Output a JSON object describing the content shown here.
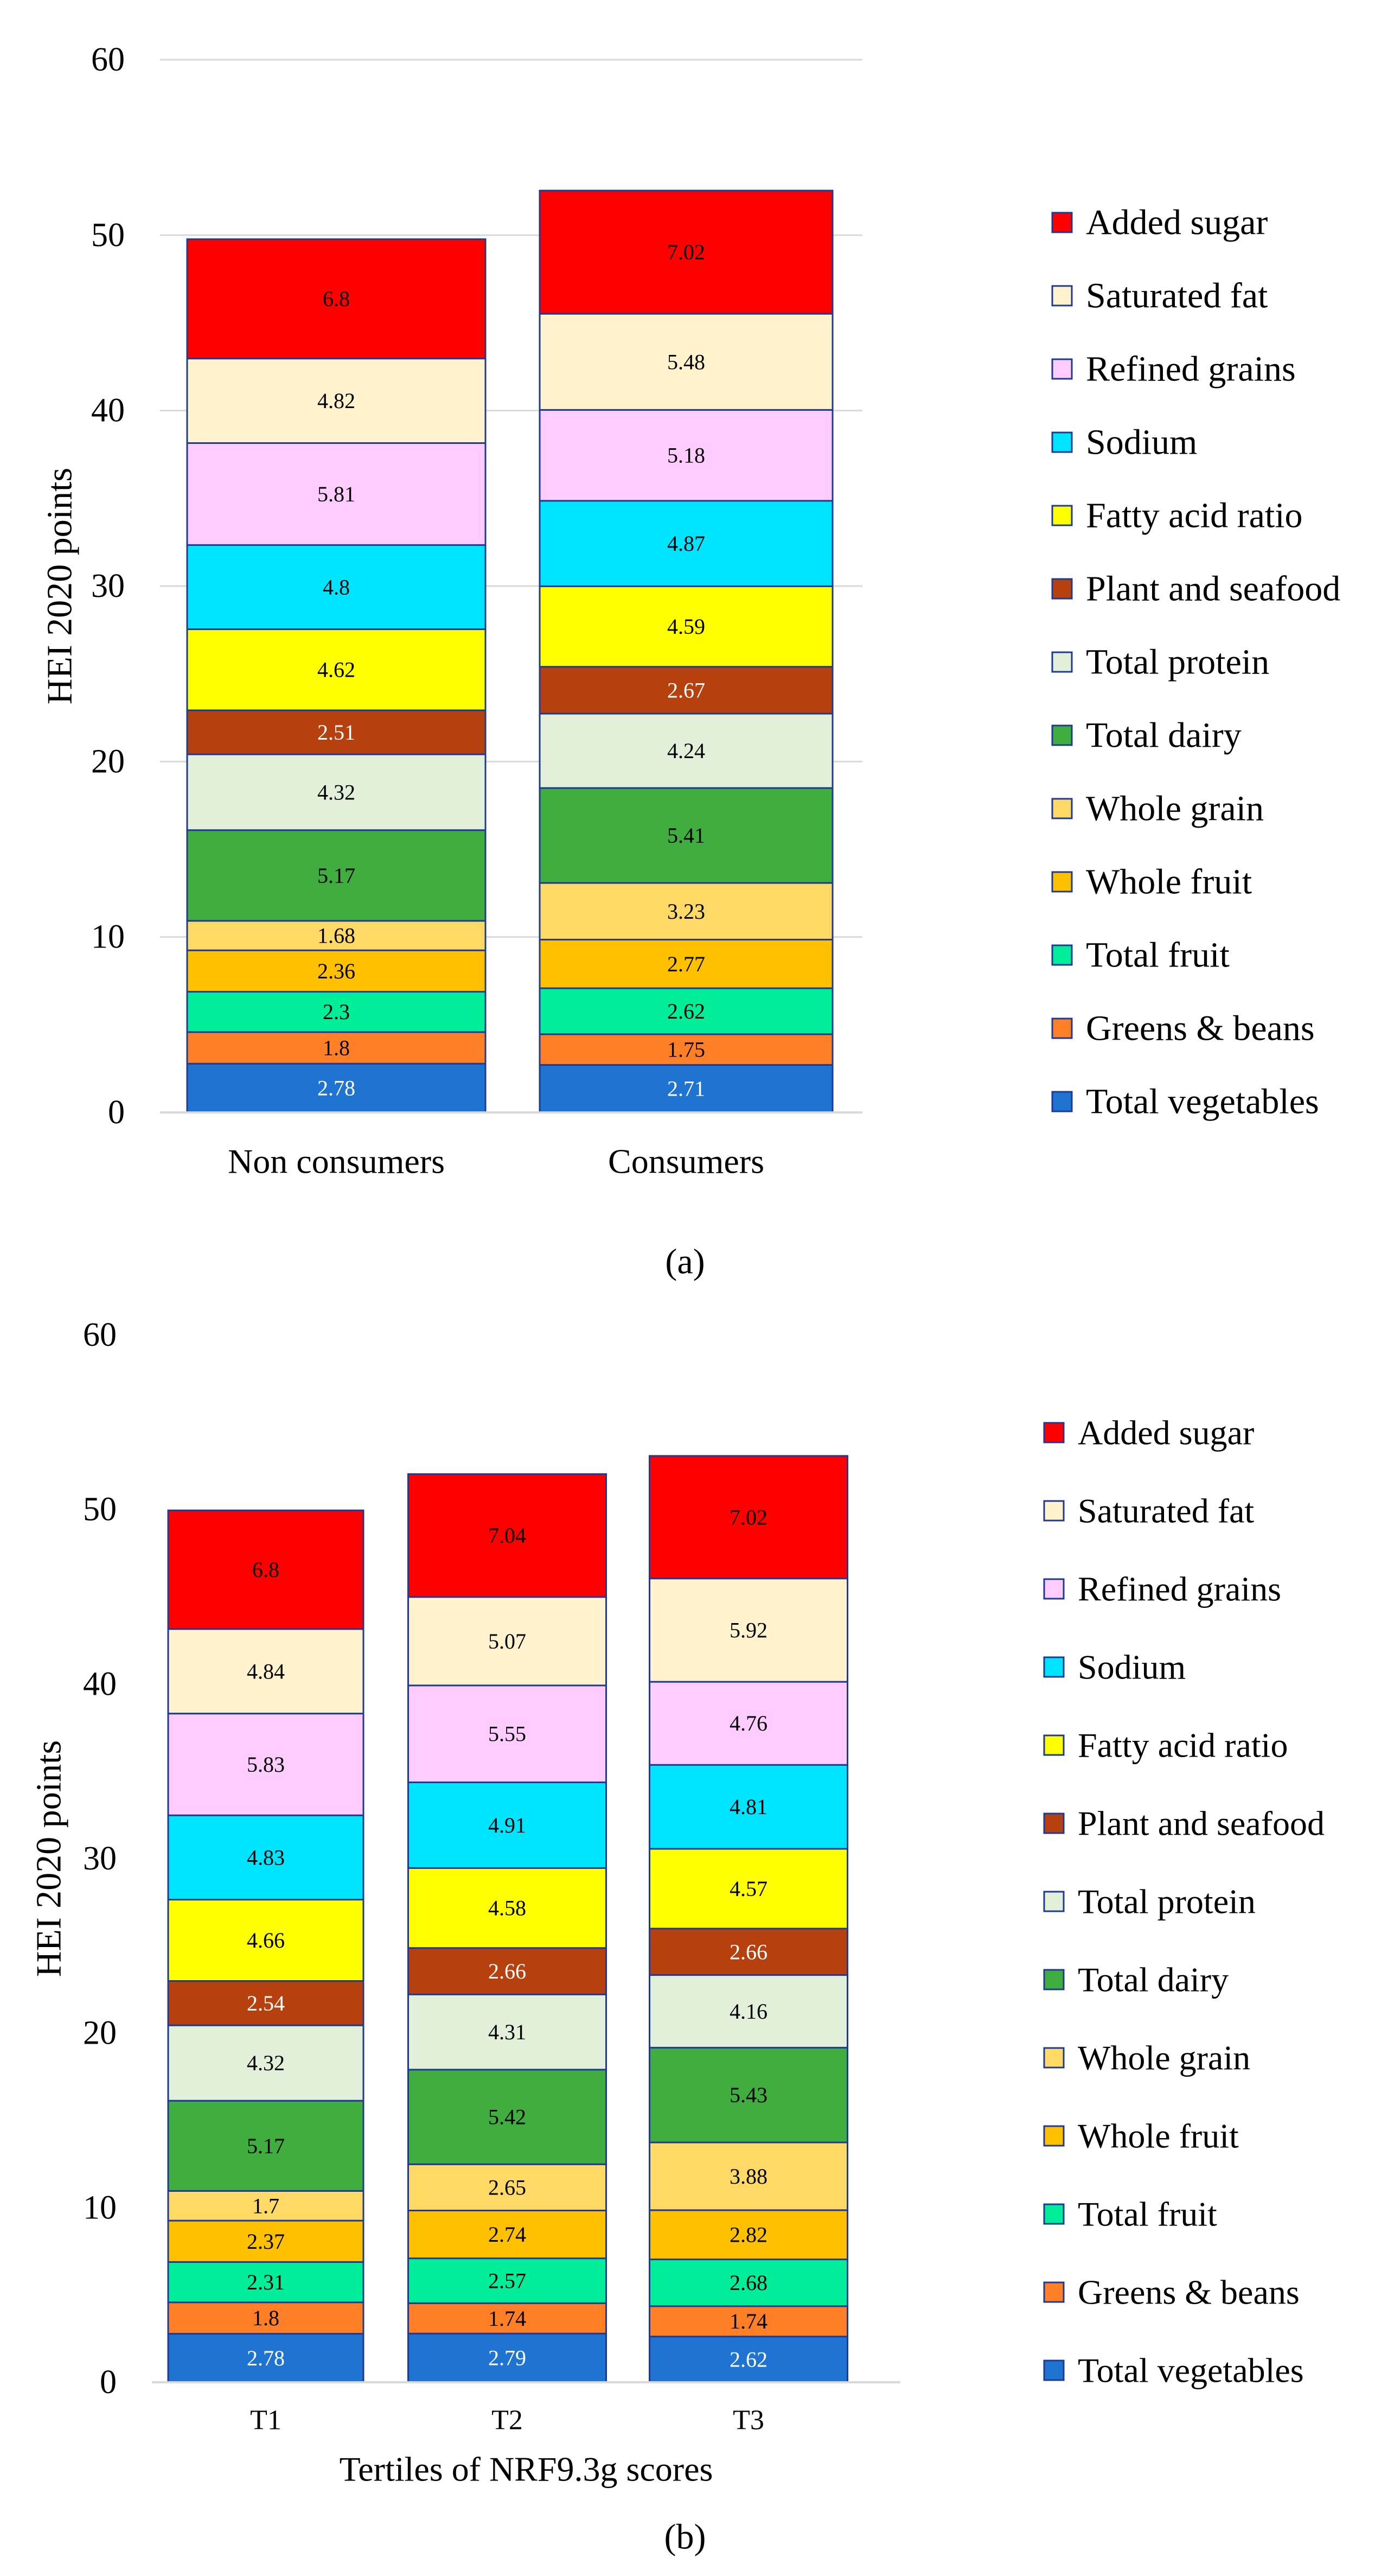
{
  "figure": {
    "panel_a_label": "(a)",
    "panel_b_label": "(b)"
  },
  "colors": {
    "Added sugar": "#ff0000",
    "Saturated fat": "#fff2cc",
    "Refined grains": "#ffccff",
    "Sodium": "#00e5ff",
    "Fatty acid ratio": "#ffff00",
    "Plant and seafood": "#b7410e",
    "Total protein": "#e2f0d9",
    "Total dairy": "#3fae3f",
    "Whole grain": "#ffd966",
    "Whole fruit": "#ffc000",
    "Total fruit": "#00ee99",
    "Greens & beans": "#ff7f27",
    "Total vegetables": "#1f73d1"
  },
  "chart_data": [
    {
      "type": "bar",
      "stacked": true,
      "panel": "a",
      "title": "",
      "xlabel": "",
      "ylabel": "HEI 2020 points",
      "ylim": [
        0,
        60
      ],
      "yticks": [
        "0",
        "10",
        "20",
        "30",
        "40",
        "50",
        "60"
      ],
      "grid": true,
      "legend_position": "right",
      "categories": [
        "Non consumers",
        "Consumers"
      ],
      "series": [
        {
          "name": "Total vegetables",
          "values": [
            2.78,
            2.71
          ],
          "labels": [
            "2.78",
            "2.71"
          ]
        },
        {
          "name": "Greens & beans",
          "values": [
            1.8,
            1.75
          ],
          "labels": [
            "1.8",
            "1.75"
          ]
        },
        {
          "name": "Total fruit",
          "values": [
            2.3,
            2.62
          ],
          "labels": [
            "2.3",
            "2.62"
          ]
        },
        {
          "name": "Whole fruit",
          "values": [
            2.36,
            2.77
          ],
          "labels": [
            "2.36",
            "2.77"
          ]
        },
        {
          "name": "Whole grain",
          "values": [
            1.68,
            3.23
          ],
          "labels": [
            "1.68",
            "3.23"
          ]
        },
        {
          "name": "Total dairy",
          "values": [
            5.17,
            5.41
          ],
          "labels": [
            "5.17",
            "5.41"
          ]
        },
        {
          "name": "Total protein",
          "values": [
            4.32,
            4.24
          ],
          "labels": [
            "4.32",
            "4.24"
          ]
        },
        {
          "name": "Plant and seafood",
          "values": [
            2.51,
            2.67
          ],
          "labels": [
            "2.51",
            "2.67"
          ]
        },
        {
          "name": "Fatty acid ratio",
          "values": [
            4.62,
            4.59
          ],
          "labels": [
            "4.62",
            "4.59"
          ]
        },
        {
          "name": "Sodium",
          "values": [
            4.8,
            4.87
          ],
          "labels": [
            "4.8",
            "4.87"
          ]
        },
        {
          "name": "Refined grains",
          "values": [
            5.81,
            5.18
          ],
          "labels": [
            "5.81",
            "5.18"
          ]
        },
        {
          "name": "Saturated fat",
          "values": [
            4.82,
            5.48
          ],
          "labels": [
            "4.82",
            "5.48"
          ]
        },
        {
          "name": "Added sugar",
          "values": [
            6.8,
            7.02
          ],
          "labels": [
            "6.8",
            "7.02"
          ]
        }
      ]
    },
    {
      "type": "bar",
      "stacked": true,
      "panel": "b",
      "title": "",
      "xlabel": "Tertiles of NRF9.3g scores",
      "ylabel": "HEI 2020 points",
      "ylim": [
        0,
        60
      ],
      "yticks": [
        "0",
        "10",
        "20",
        "30",
        "40",
        "50",
        "60"
      ],
      "grid": false,
      "legend_position": "right",
      "categories": [
        "T1",
        "T2",
        "T3"
      ],
      "series": [
        {
          "name": "Total vegetables",
          "values": [
            2.78,
            2.79,
            2.62
          ],
          "labels": [
            "2.78",
            "2.79",
            "2.62"
          ]
        },
        {
          "name": "Greens & beans",
          "values": [
            1.8,
            1.74,
            1.74
          ],
          "labels": [
            "1.8",
            "1.74",
            "1.74"
          ]
        },
        {
          "name": "Total fruit",
          "values": [
            2.31,
            2.57,
            2.68
          ],
          "labels": [
            "2.31",
            "2.57",
            "2.68"
          ]
        },
        {
          "name": "Whole fruit",
          "values": [
            2.37,
            2.74,
            2.82
          ],
          "labels": [
            "2.37",
            "2.74",
            "2.82"
          ]
        },
        {
          "name": "Whole grain",
          "values": [
            1.7,
            2.65,
            3.88
          ],
          "labels": [
            "1.7",
            "2.65",
            "3.88"
          ]
        },
        {
          "name": "Total dairy",
          "values": [
            5.17,
            5.42,
            5.43
          ],
          "labels": [
            "5.17",
            "5.42",
            "5.43"
          ]
        },
        {
          "name": "Total protein",
          "values": [
            4.32,
            4.31,
            4.16
          ],
          "labels": [
            "4.32",
            "4.31",
            "4.16"
          ]
        },
        {
          "name": "Plant and seafood",
          "values": [
            2.54,
            2.66,
            2.66
          ],
          "labels": [
            "2.54",
            "2.66",
            "2.66"
          ]
        },
        {
          "name": "Fatty acid ratio",
          "values": [
            4.66,
            4.58,
            4.57
          ],
          "labels": [
            "4.66",
            "4.58",
            "4.57"
          ]
        },
        {
          "name": "Sodium",
          "values": [
            4.83,
            4.91,
            4.81
          ],
          "labels": [
            "4.83",
            "4.91",
            "4.81"
          ]
        },
        {
          "name": "Refined grains",
          "values": [
            5.83,
            5.55,
            4.76
          ],
          "labels": [
            "5.83",
            "5.55",
            "4.76"
          ]
        },
        {
          "name": "Saturated fat",
          "values": [
            4.84,
            5.07,
            5.92
          ],
          "labels": [
            "4.84",
            "5.07",
            "5.92"
          ]
        },
        {
          "name": "Added sugar",
          "values": [
            6.8,
            7.04,
            7.02
          ],
          "labels": [
            "6.8",
            "7.04",
            "7.02"
          ]
        }
      ]
    }
  ]
}
